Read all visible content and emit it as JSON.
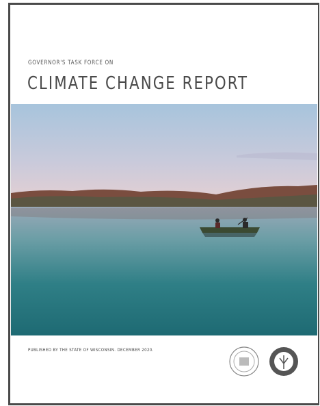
{
  "header": {
    "kicker": "GOVERNOR'S TASK FORCE ON",
    "title": "CLIMATE CHANGE REPORT"
  },
  "footer": {
    "publisher": "PUBLISHED BY THE STATE OF WISCONSIN. DECEMBER 2020."
  }
}
